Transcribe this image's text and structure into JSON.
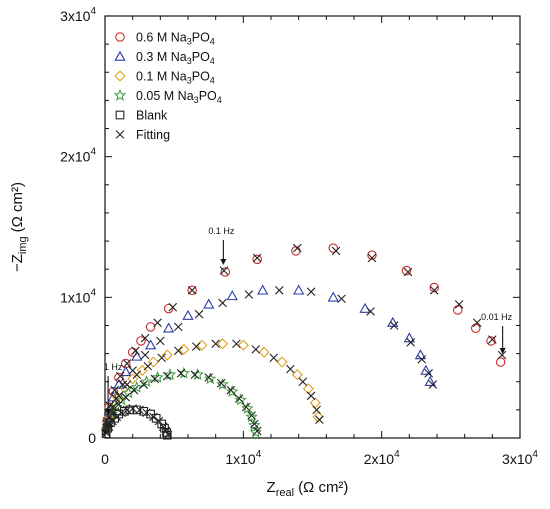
{
  "chart_data": {
    "type": "scatter",
    "xlabel_main": "Z",
    "xlabel_sub": "real",
    "xlabel_unit": "(Ω cm²)",
    "ylabel_prefix": "−Z",
    "ylabel_sub": "img",
    "ylabel_unit": "(Ω cm²)",
    "xlim": [
      0,
      30000
    ],
    "ylim": [
      0,
      30000
    ],
    "x_ticks": [
      {
        "value": 0,
        "mant": "0",
        "exp": ""
      },
      {
        "value": 10000,
        "mant": "1x10",
        "exp": "4"
      },
      {
        "value": 20000,
        "mant": "2x10",
        "exp": "4"
      },
      {
        "value": 30000,
        "mant": "3x10",
        "exp": "4"
      }
    ],
    "y_ticks": [
      {
        "value": 0,
        "mant": "0",
        "exp": ""
      },
      {
        "value": 10000,
        "mant": "1x10",
        "exp": "4"
      },
      {
        "value": 20000,
        "mant": "2x10",
        "exp": "4"
      },
      {
        "value": 30000,
        "mant": "3x10",
        "exp": "4"
      }
    ],
    "legend_position": "top-left",
    "series": [
      {
        "name": "0.6 M Na3PO4",
        "label_main": "0.6 M Na",
        "label_sub": "3",
        "label_tail": "PO",
        "label_sub2": "4",
        "marker": "circle",
        "color": "#cc2a2a",
        "points": [
          [
            150,
            1200
          ],
          [
            300,
            2200
          ],
          [
            600,
            3300
          ],
          [
            1000,
            4300
          ],
          [
            1500,
            5300
          ],
          [
            2000,
            6100
          ],
          [
            2600,
            6900
          ],
          [
            3300,
            7900
          ],
          [
            4600,
            9200
          ],
          [
            6300,
            10500
          ],
          [
            8700,
            11800
          ],
          [
            11000,
            12700
          ],
          [
            13800,
            13300
          ],
          [
            16500,
            13500
          ],
          [
            19300,
            13000
          ],
          [
            21800,
            11900
          ],
          [
            23800,
            10700
          ],
          [
            25500,
            9100
          ],
          [
            26800,
            7800
          ],
          [
            27900,
            6900
          ],
          [
            28600,
            5400
          ]
        ]
      },
      {
        "name": "0.3 M Na3PO4",
        "label_main": "0.3 M Na",
        "label_sub": "3",
        "label_tail": "PO",
        "label_sub2": "4",
        "marker": "triangle",
        "color": "#2b3ea8",
        "points": [
          [
            150,
            1000
          ],
          [
            300,
            1900
          ],
          [
            600,
            2900
          ],
          [
            1000,
            3800
          ],
          [
            1500,
            4700
          ],
          [
            2300,
            5800
          ],
          [
            3300,
            6600
          ],
          [
            4600,
            7800
          ],
          [
            6000,
            8700
          ],
          [
            7500,
            9500
          ],
          [
            9200,
            10100
          ],
          [
            11400,
            10500
          ],
          [
            14000,
            10500
          ],
          [
            16500,
            10000
          ],
          [
            18800,
            9200
          ],
          [
            20800,
            8200
          ],
          [
            22000,
            7100
          ],
          [
            22800,
            5900
          ],
          [
            23200,
            4800
          ],
          [
            23500,
            4000
          ]
        ]
      },
      {
        "name": "0.1 M Na3PO4",
        "label_main": "0.1 M Na",
        "label_sub": "3",
        "label_tail": "PO",
        "label_sub2": "4",
        "marker": "diamond",
        "color": "#e0a020",
        "points": [
          [
            100,
            700
          ],
          [
            250,
            1400
          ],
          [
            500,
            2100
          ],
          [
            900,
            2900
          ],
          [
            1400,
            3600
          ],
          [
            2000,
            4200
          ],
          [
            2700,
            4800
          ],
          [
            3500,
            5400
          ],
          [
            4500,
            5900
          ],
          [
            5700,
            6300
          ],
          [
            7000,
            6600
          ],
          [
            8500,
            6700
          ],
          [
            10000,
            6600
          ],
          [
            11500,
            6100
          ],
          [
            12800,
            5400
          ],
          [
            13900,
            4500
          ],
          [
            14700,
            3500
          ],
          [
            15200,
            2500
          ],
          [
            15400,
            1500
          ]
        ]
      },
      {
        "name": "0.05 M Na3PO4",
        "label_main": "0.05 M Na",
        "label_sub": "3",
        "label_tail": "PO",
        "label_sub2": "4",
        "marker": "star",
        "color": "#3a9a3a",
        "points": [
          [
            100,
            500
          ],
          [
            250,
            1100
          ],
          [
            500,
            1700
          ],
          [
            800,
            2200
          ],
          [
            1200,
            2700
          ],
          [
            1700,
            3200
          ],
          [
            2300,
            3600
          ],
          [
            3000,
            4000
          ],
          [
            3800,
            4300
          ],
          [
            4700,
            4500
          ],
          [
            5700,
            4600
          ],
          [
            6700,
            4500
          ],
          [
            7600,
            4200
          ],
          [
            8500,
            3800
          ],
          [
            9200,
            3300
          ],
          [
            9800,
            2700
          ],
          [
            10300,
            2100
          ],
          [
            10600,
            1500
          ],
          [
            10800,
            900
          ],
          [
            10900,
            400
          ]
        ]
      },
      {
        "name": "Blank",
        "label_main": "Blank",
        "marker": "square",
        "color": "#222222",
        "points": [
          [
            80,
            300
          ],
          [
            200,
            700
          ],
          [
            400,
            1100
          ],
          [
            700,
            1400
          ],
          [
            1000,
            1700
          ],
          [
            1400,
            1900
          ],
          [
            1800,
            2000
          ],
          [
            2300,
            2000
          ],
          [
            2800,
            1900
          ],
          [
            3300,
            1700
          ],
          [
            3700,
            1400
          ],
          [
            4100,
            1000
          ],
          [
            4300,
            700
          ],
          [
            4450,
            400
          ],
          [
            4500,
            200
          ]
        ]
      },
      {
        "name": "Fitting",
        "label_main": "Fitting",
        "marker": "x",
        "color": "#222222",
        "points": [
          [
            150,
            1200
          ],
          [
            350,
            2300
          ],
          [
            700,
            3400
          ],
          [
            1100,
            4400
          ],
          [
            1600,
            5300
          ],
          [
            2200,
            6200
          ],
          [
            2900,
            7100
          ],
          [
            3800,
            8200
          ],
          [
            4900,
            9300
          ],
          [
            6300,
            10500
          ],
          [
            8600,
            11900
          ],
          [
            11000,
            12800
          ],
          [
            13900,
            13500
          ],
          [
            16700,
            13300
          ],
          [
            19300,
            12800
          ],
          [
            21900,
            11800
          ],
          [
            23800,
            10500
          ],
          [
            25600,
            9500
          ],
          [
            26900,
            8200
          ],
          [
            28000,
            7000
          ],
          [
            28700,
            5900
          ],
          [
            150,
            1000
          ],
          [
            400,
            1800
          ],
          [
            800,
            2800
          ],
          [
            1300,
            3800
          ],
          [
            2000,
            4800
          ],
          [
            2900,
            5900
          ],
          [
            4000,
            6900
          ],
          [
            5300,
            7900
          ],
          [
            6800,
            8800
          ],
          [
            8500,
            9600
          ],
          [
            10400,
            10200
          ],
          [
            12600,
            10500
          ],
          [
            14900,
            10400
          ],
          [
            17100,
            9900
          ],
          [
            19200,
            9000
          ],
          [
            20900,
            8000
          ],
          [
            22100,
            6800
          ],
          [
            22900,
            5600
          ],
          [
            23400,
            4600
          ],
          [
            23700,
            3800
          ],
          [
            100,
            700
          ],
          [
            300,
            1500
          ],
          [
            600,
            2200
          ],
          [
            1000,
            3000
          ],
          [
            1600,
            3800
          ],
          [
            2300,
            4500
          ],
          [
            3100,
            5100
          ],
          [
            4100,
            5700
          ],
          [
            5300,
            6200
          ],
          [
            6600,
            6500
          ],
          [
            8000,
            6700
          ],
          [
            9500,
            6700
          ],
          [
            10900,
            6300
          ],
          [
            12200,
            5700
          ],
          [
            13400,
            4900
          ],
          [
            14300,
            4000
          ],
          [
            14900,
            3000
          ],
          [
            15300,
            2000
          ],
          [
            15500,
            1300
          ],
          [
            100,
            500
          ],
          [
            300,
            1100
          ],
          [
            600,
            1800
          ],
          [
            1000,
            2400
          ],
          [
            1500,
            2900
          ],
          [
            2100,
            3400
          ],
          [
            2800,
            3800
          ],
          [
            3600,
            4200
          ],
          [
            4500,
            4400
          ],
          [
            5500,
            4600
          ],
          [
            6500,
            4500
          ],
          [
            7500,
            4300
          ],
          [
            8400,
            3900
          ],
          [
            9100,
            3400
          ],
          [
            9700,
            2800
          ],
          [
            10200,
            2200
          ],
          [
            10600,
            1600
          ],
          [
            10800,
            1000
          ],
          [
            11000,
            500
          ],
          [
            100,
            350
          ],
          [
            300,
            800
          ],
          [
            550,
            1200
          ],
          [
            850,
            1500
          ],
          [
            1200,
            1800
          ],
          [
            1600,
            2000
          ],
          [
            2000,
            2100
          ],
          [
            2500,
            2000
          ],
          [
            3000,
            1800
          ],
          [
            3500,
            1500
          ],
          [
            3900,
            1200
          ],
          [
            4200,
            800
          ],
          [
            4400,
            500
          ],
          [
            4550,
            250
          ]
        ]
      }
    ],
    "annotations": [
      {
        "text": "0.1 Hz",
        "x": 8700,
        "y": 11800
      },
      {
        "text": "0.01 Hz",
        "x": 28600,
        "y": 5400
      },
      {
        "text": "1 Hz",
        "x": 150,
        "y": 1200
      }
    ]
  }
}
